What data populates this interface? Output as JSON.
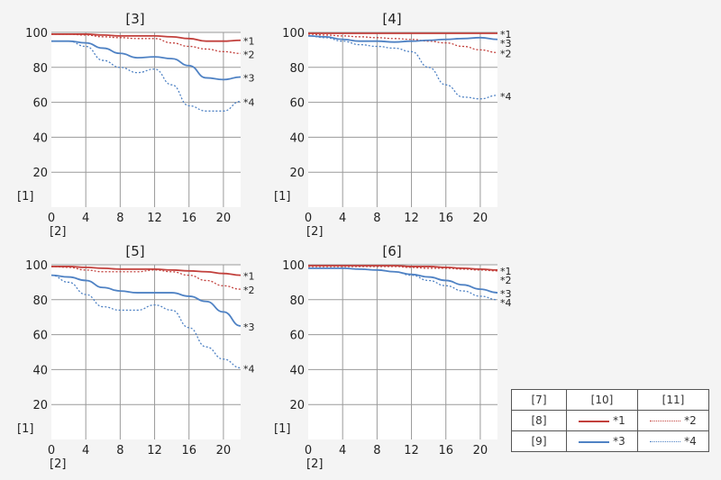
{
  "colors": {
    "red": "#c2403c",
    "blue": "#4f82c4",
    "grid": "#9a9a9a"
  },
  "chart_data": [
    {
      "type": "line",
      "title": "[3]",
      "ylabel": "[1]",
      "xlabel": "[2]",
      "xlim": [
        0,
        22
      ],
      "ylim": [
        0,
        100
      ],
      "xticks": [
        0,
        4,
        8,
        12,
        16,
        20
      ],
      "yticks": [
        20,
        40,
        60,
        80,
        100
      ],
      "x": [
        0,
        2,
        4,
        6,
        8,
        10,
        12,
        14,
        16,
        18,
        20,
        22
      ],
      "series": [
        {
          "name": "*1",
          "color": "red",
          "style": "solid",
          "values": [
            99,
            99,
            99,
            98.5,
            98,
            98,
            98,
            97.5,
            96.5,
            95,
            95,
            95.5
          ]
        },
        {
          "name": "*2",
          "color": "red",
          "style": "dotted",
          "values": [
            99,
            99,
            98.5,
            97.5,
            97,
            96.5,
            96.5,
            94,
            92,
            90.5,
            89,
            88
          ]
        },
        {
          "name": "*3",
          "color": "blue",
          "style": "solid",
          "values": [
            95,
            95,
            94,
            91,
            88,
            85.5,
            86,
            85,
            81,
            74,
            73,
            74.5
          ]
        },
        {
          "name": "*4",
          "color": "blue",
          "style": "dotted",
          "values": [
            95,
            95,
            92,
            84,
            80,
            77,
            79,
            70,
            58,
            55,
            55,
            60.5
          ]
        }
      ]
    },
    {
      "type": "line",
      "title": "[4]",
      "ylabel": "[1]",
      "xlabel": "[2]",
      "xlim": [
        0,
        22
      ],
      "ylim": [
        0,
        100
      ],
      "xticks": [
        0,
        4,
        8,
        12,
        16,
        20
      ],
      "yticks": [
        20,
        40,
        60,
        80,
        100
      ],
      "x": [
        0,
        2,
        4,
        6,
        8,
        10,
        12,
        14,
        16,
        18,
        20,
        22
      ],
      "series": [
        {
          "name": "*1",
          "color": "red",
          "style": "solid",
          "values": [
            99.5,
            99.5,
            99.5,
            99.5,
            99.5,
            99.5,
            99.5,
            99.5,
            99.5,
            99.5,
            99.5,
            99.5
          ]
        },
        {
          "name": "*2",
          "color": "red",
          "style": "dotted",
          "values": [
            99,
            98.5,
            98,
            97.5,
            97,
            96.5,
            96,
            95,
            94,
            92,
            90,
            88.5
          ]
        },
        {
          "name": "*3",
          "color": "blue",
          "style": "solid",
          "values": [
            98,
            97.5,
            96,
            95,
            95,
            94.5,
            95,
            95.5,
            96,
            96.5,
            97,
            96
          ]
        },
        {
          "name": "*4",
          "color": "blue",
          "style": "dotted",
          "values": [
            98,
            97,
            95,
            93,
            92,
            91,
            89,
            80,
            70,
            63,
            62,
            64
          ]
        }
      ]
    },
    {
      "type": "line",
      "title": "[5]",
      "ylabel": "[1]",
      "xlabel": "[2]",
      "xlim": [
        0,
        22
      ],
      "ylim": [
        0,
        100
      ],
      "xticks": [
        0,
        4,
        8,
        12,
        16,
        20
      ],
      "yticks": [
        20,
        40,
        60,
        80,
        100
      ],
      "x": [
        0,
        2,
        4,
        6,
        8,
        10,
        12,
        14,
        16,
        18,
        20,
        22
      ],
      "series": [
        {
          "name": "*1",
          "color": "red",
          "style": "solid",
          "values": [
            99,
            99,
            98.5,
            98,
            97.5,
            97.5,
            97.5,
            97,
            96.5,
            96,
            95,
            94
          ]
        },
        {
          "name": "*2",
          "color": "red",
          "style": "dotted",
          "values": [
            99,
            98.5,
            97,
            96,
            96,
            96,
            97,
            96,
            94,
            91,
            88,
            86
          ]
        },
        {
          "name": "*3",
          "color": "blue",
          "style": "solid",
          "values": [
            94,
            93,
            91,
            87,
            85,
            84,
            84,
            84,
            82,
            79,
            73,
            65
          ]
        },
        {
          "name": "*4",
          "color": "blue",
          "style": "dotted",
          "values": [
            94,
            90,
            83,
            76,
            74,
            74,
            77,
            74,
            64,
            53,
            46,
            41
          ]
        }
      ]
    },
    {
      "type": "line",
      "title": "[6]",
      "ylabel": "[1]",
      "xlabel": "[2]",
      "xlim": [
        0,
        22
      ],
      "ylim": [
        0,
        100
      ],
      "xticks": [
        0,
        4,
        8,
        12,
        16,
        20
      ],
      "yticks": [
        20,
        40,
        60,
        80,
        100
      ],
      "x": [
        0,
        2,
        4,
        6,
        8,
        10,
        12,
        14,
        16,
        18,
        20,
        22
      ],
      "series": [
        {
          "name": "*1",
          "color": "red",
          "style": "solid",
          "values": [
            99.5,
            99.5,
            99.5,
            99.5,
            99.5,
            99.5,
            99,
            99,
            98.5,
            98,
            97.5,
            97
          ]
        },
        {
          "name": "*2",
          "color": "red",
          "style": "dotted",
          "values": [
            99,
            99,
            99,
            99,
            99,
            99,
            98.5,
            98,
            98,
            97.5,
            97,
            96.5
          ]
        },
        {
          "name": "*3",
          "color": "blue",
          "style": "solid",
          "values": [
            98,
            98,
            98,
            97.5,
            97,
            96,
            94.5,
            93,
            91,
            88.5,
            86,
            84
          ]
        },
        {
          "name": "*4",
          "color": "blue",
          "style": "dotted",
          "values": [
            98,
            98,
            98,
            97.5,
            97,
            96,
            94,
            91,
            88,
            85,
            82,
            80
          ]
        }
      ]
    }
  ],
  "legend": {
    "corner": "[7]",
    "col1": "[10]",
    "col2": "[11]",
    "row1": "[8]",
    "row2": "[9]",
    "s1": "*1",
    "s2": "*2",
    "s3": "*3",
    "s4": "*4"
  }
}
